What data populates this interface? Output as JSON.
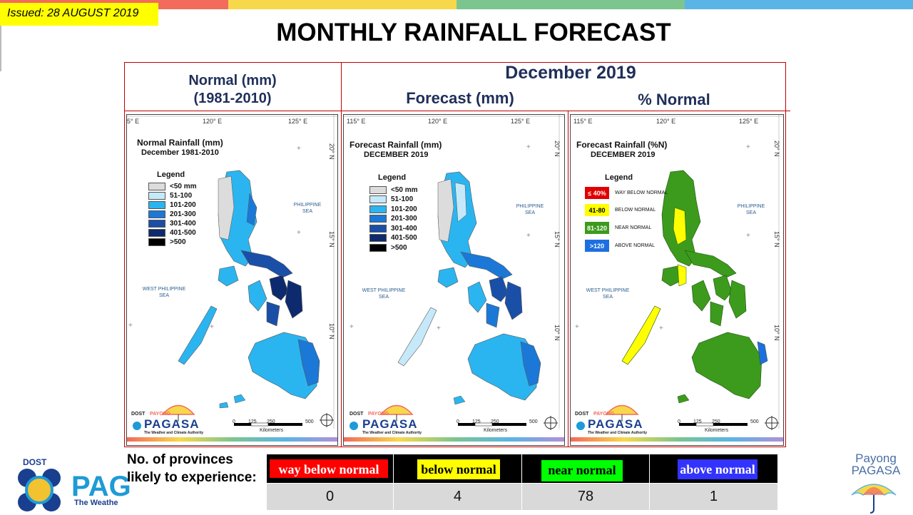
{
  "issued": "Issued: 28 AUGUST 2019",
  "title": "MONTHLY RAINFALL FORECAST",
  "header": {
    "normal_line1": "Normal (mm)",
    "normal_line2": "(1981-2010)",
    "month": "December 2019",
    "forecast": "Forecast (mm)",
    "pct_normal": "% Normal"
  },
  "colors": {
    "topbar": [
      "#f26b5b",
      "#f7d84a",
      "#7cc58f",
      "#5ab4e5"
    ],
    "frame": "#c00000",
    "header_text": "#1f2f5a"
  },
  "panels": [
    {
      "title_line1": "Normal Rainfall (mm)",
      "title_line2": "December 1981-2010",
      "lon_labels": [
        "5° E",
        "120° E",
        "125° E"
      ],
      "lat_labels": [
        "20° N",
        "15° N",
        "10° N"
      ]
    },
    {
      "title_line1": "Forecast Rainfall (mm)",
      "title_line2": "DECEMBER 2019",
      "lon_labels": [
        "115° E",
        "120° E",
        "125° E"
      ],
      "lat_labels": [
        "20° N",
        "15° N",
        "10° N"
      ]
    },
    {
      "title_line1": "Forecast Rainfall (%N)",
      "title_line2": "DECEMBER 2019",
      "lon_labels": [
        "115° E",
        "120° E",
        "125° E"
      ],
      "lat_labels": [
        "20° N",
        "15° N",
        "10° N"
      ]
    }
  ],
  "legend_title": "Legend",
  "mm_legend": [
    {
      "label": "<50 mm",
      "color": "#dcdcdc"
    },
    {
      "label": "51-100",
      "color": "#c6e9fa"
    },
    {
      "label": "101-200",
      "color": "#2bb5f0"
    },
    {
      "label": "201-300",
      "color": "#1c78d6"
    },
    {
      "label": "301-400",
      "color": "#1a4fa8"
    },
    {
      "label": "401-500",
      "color": "#0e2a6e"
    },
    {
      "label": ">500",
      "color": "#000000"
    }
  ],
  "pct_legend": [
    {
      "box": "≤ 40%",
      "label": "WAY BELOW NORMAL",
      "color": "#e00000",
      "text": "#ffffff"
    },
    {
      "box": "41-80",
      "label": "BELOW NORMAL",
      "color": "#ffff00",
      "text": "#000000"
    },
    {
      "box": "81-120",
      "label": "NEAR NORMAL",
      "color": "#3c9b1c",
      "text": "#ffffff"
    },
    {
      "box": ">120",
      "label": "ABOVE NORMAL",
      "color": "#1d6fe0",
      "text": "#ffffff"
    }
  ],
  "sea_labels": {
    "philippine_sea": [
      "PHILIPPINE",
      "SEA"
    ],
    "west_philippine_sea": [
      "WEST PHILIPPINE",
      "SEA"
    ]
  },
  "scale": {
    "ticks": [
      "0",
      "125",
      "250",
      "500"
    ],
    "unit": "Kilometers"
  },
  "map_logo": {
    "dost": "DOST",
    "payong": "PAYONG",
    "pagasa": "PAGASA",
    "tagline": "The Weather and Climate Authority"
  },
  "provinces": {
    "label": "No. of provinces likely to experience:",
    "categories": [
      {
        "name": "way below normal",
        "count": "0",
        "bg": "#ff0000",
        "text": "#ffffff"
      },
      {
        "name": "below normal",
        "count": "4",
        "bg": "#ffff00",
        "text": "#000000"
      },
      {
        "name": "near normal",
        "count": "78",
        "bg": "#00ff00",
        "text": "#000000"
      },
      {
        "name": "above normal",
        "count": "1",
        "bg": "#3333ff",
        "text": "#ffffff"
      }
    ]
  },
  "bottom_left": {
    "dost": "DOST",
    "pagasa_partial": "PAG",
    "tagline_partial": "The Weathe"
  },
  "bottom_right": {
    "line1": "Payong",
    "line2": "PAGASA"
  }
}
